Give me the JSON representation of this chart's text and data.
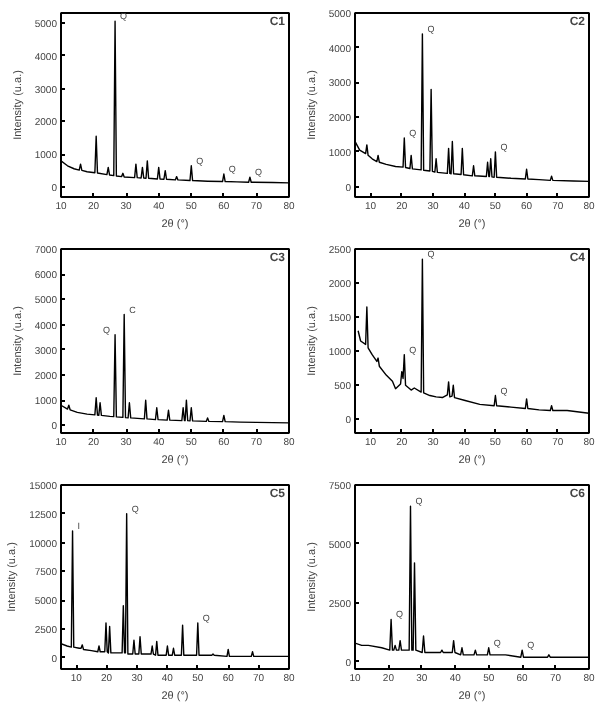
{
  "chart_data": [
    {
      "type": "line",
      "xlabel": "2θ (°)",
      "ylabel": "Intensity (u.a.)",
      "xlim": [
        10,
        80
      ],
      "ylim": [
        -300,
        5300
      ],
      "xticks": [
        10,
        20,
        30,
        40,
        50,
        60,
        70,
        80
      ],
      "yticks": [
        0,
        1000,
        2000,
        3000,
        4000,
        5000
      ],
      "grid": false,
      "marker": "none",
      "line_style": "solid",
      "annotations": [
        "C1",
        {
          "text": "Q",
          "x": 26.6,
          "y": 5050
        },
        {
          "text": "Q",
          "x": 50,
          "y": 650
        },
        {
          "text": "Q",
          "x": 60,
          "y": 400
        },
        {
          "text": "Q",
          "x": 68,
          "y": 300
        }
      ],
      "series": [
        {
          "color": "#000000",
          "x": [
            10,
            12,
            14,
            15.6,
            16,
            16.4,
            18,
            20.4,
            20.8,
            21.2,
            24.1,
            24.5,
            24.9,
            26.2,
            26.6,
            27,
            28.6,
            29,
            29.4,
            32.6,
            33,
            33.4,
            34.6,
            35,
            35.4,
            36.1,
            36.5,
            36.9,
            39.6,
            40,
            40.4,
            41.6,
            42,
            42.4,
            45.1,
            45.5,
            45.9,
            49.6,
            50,
            50.4,
            55,
            59.6,
            60,
            60.4,
            64,
            67.6,
            68,
            68.4,
            75,
            80
          ],
          "values": [
            800,
            650,
            560,
            520,
            700,
            510,
            470,
            440,
            1550,
            430,
            380,
            600,
            370,
            350,
            5050,
            340,
            320,
            420,
            310,
            290,
            700,
            290,
            280,
            600,
            280,
            270,
            800,
            270,
            250,
            600,
            250,
            240,
            500,
            240,
            220,
            320,
            220,
            200,
            650,
            200,
            180,
            170,
            400,
            170,
            160,
            150,
            300,
            150,
            140,
            130
          ]
        }
      ]
    },
    {
      "type": "line",
      "xlabel": "2θ (°)",
      "ylabel": "Intensity (u.a.)",
      "xlim": [
        5,
        80
      ],
      "ylim": [
        -300,
        5000
      ],
      "xticks": [
        10,
        20,
        30,
        40,
        50,
        60,
        70,
        80
      ],
      "yticks": [
        0,
        1000,
        2000,
        3000,
        4000,
        5000
      ],
      "grid": false,
      "marker": "none",
      "line_style": "solid",
      "annotations": [
        "C2",
        {
          "text": "Q",
          "x": 26.6,
          "y": 4400
        },
        {
          "text": "Q",
          "x": 20.8,
          "y": 1400
        },
        {
          "text": "Q",
          "x": 50,
          "y": 1000
        }
      ],
      "series": [
        {
          "color": "#000000",
          "x": [
            5,
            6.5,
            8.4,
            8.8,
            9.2,
            10.5,
            12,
            12.4,
            12.8,
            15,
            18,
            20.4,
            20.8,
            21.2,
            22.6,
            23,
            23.4,
            26.2,
            26.6,
            27,
            29,
            29.4,
            29.8,
            30.6,
            31,
            31.4,
            34.6,
            35,
            35.4,
            35.8,
            36.2,
            36.6,
            39,
            39.4,
            39.8,
            42.6,
            43,
            43.4,
            47.1,
            47.5,
            47.9,
            48.1,
            48.5,
            48.9,
            49.6,
            50,
            50.4,
            55,
            59.6,
            60,
            60.4,
            64,
            67.6,
            68,
            68.4,
            75,
            80
          ],
          "values": [
            1300,
            1050,
            950,
            1200,
            900,
            800,
            720,
            900,
            700,
            640,
            580,
            560,
            1400,
            550,
            520,
            900,
            510,
            480,
            4400,
            470,
            450,
            2800,
            440,
            420,
            800,
            410,
            380,
            1100,
            380,
            370,
            1300,
            370,
            350,
            1100,
            340,
            310,
            600,
            310,
            290,
            700,
            290,
            290,
            800,
            280,
            270,
            1000,
            270,
            240,
            220,
            500,
            220,
            200,
            180,
            300,
            180,
            160,
            150
          ]
        }
      ]
    },
    {
      "type": "line",
      "xlabel": "2θ (°)",
      "ylabel": "Intensity (u.a.)",
      "xlim": [
        10,
        80
      ],
      "ylim": [
        -300,
        7000
      ],
      "xticks": [
        10,
        20,
        30,
        40,
        50,
        60,
        70,
        80
      ],
      "yticks": [
        0,
        1000,
        2000,
        3000,
        4000,
        5000,
        6000,
        7000
      ],
      "grid": false,
      "marker": "none",
      "line_style": "solid",
      "annotations": [
        "C3",
        {
          "text": "Q",
          "x": 26.6,
          "y": 3600
        },
        {
          "text": "C",
          "x": 29.4,
          "y": 4400
        }
      ],
      "series": [
        {
          "color": "#000000",
          "x": [
            10,
            12,
            12.4,
            12.8,
            15,
            18,
            20.4,
            20.8,
            21.2,
            21.6,
            22,
            22.4,
            25,
            26.2,
            26.6,
            27,
            29,
            29.4,
            29.8,
            30.6,
            31,
            31.4,
            35.6,
            36,
            36.4,
            39,
            39.4,
            39.8,
            42.6,
            43,
            43.4,
            47.1,
            47.5,
            47.9,
            48.1,
            48.5,
            48.9,
            49.6,
            50,
            50.4,
            54.6,
            55,
            55.4,
            59.6,
            60,
            60.4,
            65,
            70,
            75,
            80
          ],
          "values": [
            800,
            650,
            800,
            620,
            520,
            450,
            420,
            1100,
            410,
            400,
            900,
            400,
            360,
            350,
            3600,
            340,
            320,
            4400,
            310,
            300,
            900,
            300,
            260,
            1000,
            260,
            230,
            700,
            230,
            210,
            600,
            210,
            190,
            700,
            190,
            190,
            1000,
            190,
            180,
            700,
            180,
            160,
            300,
            160,
            150,
            400,
            150,
            130,
            120,
            110,
            100
          ]
        }
      ]
    },
    {
      "type": "line",
      "xlabel": "2θ (°)",
      "ylabel": "Intensity (u.a.)",
      "xlim": [
        5,
        80
      ],
      "ylim": [
        -200,
        2500
      ],
      "xticks": [
        10,
        20,
        30,
        40,
        50,
        60,
        70,
        80
      ],
      "yticks": [
        0,
        500,
        1000,
        1500,
        2000,
        2500
      ],
      "grid": false,
      "marker": "none",
      "line_style": "solid",
      "annotations": [
        "C4",
        {
          "text": "Q",
          "x": 26.6,
          "y": 2350
        },
        {
          "text": "Q",
          "x": 20.8,
          "y": 950
        },
        {
          "text": "Q",
          "x": 50,
          "y": 350
        }
      ],
      "series": [
        {
          "color": "#000000",
          "x": [
            6,
            6.8,
            8.4,
            8.8,
            9.2,
            10.5,
            12,
            12.4,
            12.8,
            15,
            17,
            18,
            19.6,
            20,
            20.4,
            20.8,
            21.2,
            23,
            24,
            26.2,
            26.6,
            27,
            29,
            31,
            33,
            34.6,
            35,
            35.4,
            36.1,
            36.5,
            36.9,
            40,
            45,
            49.6,
            50,
            50.4,
            55,
            59.6,
            60,
            60.4,
            64,
            67.6,
            68,
            68.4,
            73,
            80
          ],
          "values": [
            1300,
            1150,
            1100,
            1650,
            1050,
            950,
            850,
            900,
            780,
            650,
            560,
            450,
            520,
            700,
            600,
            950,
            500,
            430,
            460,
            400,
            2350,
            390,
            350,
            330,
            320,
            360,
            550,
            330,
            340,
            500,
            320,
            280,
            220,
            200,
            350,
            200,
            180,
            160,
            300,
            160,
            140,
            130,
            200,
            130,
            130,
            90
          ]
        }
      ]
    },
    {
      "type": "line",
      "xlabel": "2θ (°)",
      "ylabel": "Intensity (u.a.)",
      "xlim": [
        5,
        80
      ],
      "ylim": [
        -1000,
        15000
      ],
      "xticks": [
        10,
        20,
        30,
        40,
        50,
        60,
        70,
        80
      ],
      "yticks": [
        0,
        2500,
        5000,
        7500,
        10000,
        12500,
        15000
      ],
      "grid": false,
      "marker": "none",
      "line_style": "solid",
      "annotations": [
        "C5",
        {
          "text": "I",
          "x": 8.8,
          "y": 11000
        },
        {
          "text": "Q",
          "x": 26.6,
          "y": 12500
        },
        {
          "text": "Q",
          "x": 50,
          "y": 3000
        }
      ],
      "series": [
        {
          "color": "#000000",
          "x": [
            5,
            7,
            8.4,
            8.8,
            9.2,
            11,
            11.6,
            12,
            12.4,
            15,
            17.1,
            17.5,
            17.9,
            19.4,
            19.8,
            20.2,
            20.6,
            21,
            21.4,
            24,
            25.1,
            25.5,
            25.9,
            26.2,
            26.6,
            27,
            28.6,
            29,
            29.4,
            30.6,
            31,
            31.4,
            34.6,
            35,
            35.4,
            36.1,
            36.5,
            36.9,
            39.6,
            40,
            40.4,
            41.6,
            42,
            42.4,
            44.6,
            45,
            45.4,
            49.6,
            50,
            50.4,
            54.6,
            55,
            55.4,
            59.6,
            60,
            60.4,
            64,
            67.6,
            68,
            68.4,
            75,
            80
          ],
          "values": [
            1200,
            1000,
            900,
            11000,
            900,
            800,
            800,
            1100,
            700,
            600,
            500,
            1000,
            500,
            500,
            3000,
            500,
            400,
            2700,
            400,
            400,
            400,
            4500,
            400,
            400,
            12500,
            300,
            300,
            1500,
            300,
            300,
            1800,
            300,
            300,
            1000,
            300,
            200,
            1400,
            200,
            200,
            1000,
            200,
            200,
            800,
            200,
            200,
            2800,
            200,
            200,
            3000,
            200,
            200,
            300,
            200,
            100,
            700,
            100,
            100,
            100,
            500,
            100,
            100,
            100
          ]
        }
      ]
    },
    {
      "type": "line",
      "xlabel": "2θ (°)",
      "ylabel": "Intensity (u.a.)",
      "xlim": [
        10,
        80
      ],
      "ylim": [
        -300,
        7500
      ],
      "xticks": [
        10,
        20,
        30,
        40,
        50,
        60,
        70,
        80
      ],
      "yticks": [
        0,
        2500,
        5000,
        7500
      ],
      "grid": false,
      "marker": "none",
      "line_style": "solid",
      "annotations": [
        "C6",
        {
          "text": "Q",
          "x": 26.6,
          "y": 6600
        },
        {
          "text": "Q",
          "x": 20.8,
          "y": 1800
        },
        {
          "text": "Q",
          "x": 50,
          "y": 600
        },
        {
          "text": "Q",
          "x": 60,
          "y": 500
        }
      ],
      "series": [
        {
          "color": "#000000",
          "x": [
            10,
            12,
            14,
            18,
            20.4,
            20.8,
            21.2,
            21.6,
            22,
            22.4,
            23.1,
            23.5,
            23.9,
            26.2,
            26.6,
            27,
            27.4,
            27.8,
            28.2,
            30.1,
            30.5,
            30.9,
            35.6,
            36,
            36.4,
            39.1,
            39.5,
            39.9,
            41.6,
            42,
            42.4,
            45.6,
            46,
            46.4,
            49.6,
            50,
            50.4,
            55,
            59.6,
            60,
            60.4,
            64,
            67.6,
            68,
            68.4,
            75,
            80
          ],
          "values": [
            800,
            700,
            700,
            600,
            500,
            1800,
            500,
            500,
            700,
            500,
            500,
            900,
            500,
            500,
            6600,
            500,
            500,
            4200,
            500,
            400,
            1100,
            400,
            400,
            500,
            400,
            400,
            900,
            400,
            300,
            600,
            300,
            300,
            500,
            300,
            300,
            600,
            300,
            300,
            200,
            500,
            200,
            200,
            200,
            300,
            200,
            200,
            200
          ]
        }
      ]
    }
  ]
}
